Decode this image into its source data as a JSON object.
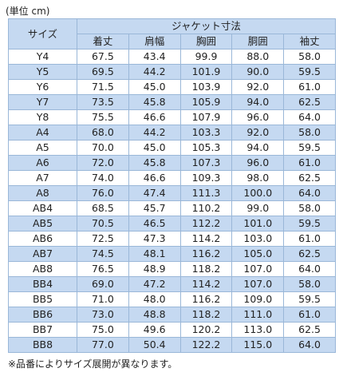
{
  "unit_note": "(単位 cm)",
  "headers": {
    "size": "サイズ",
    "group": "ジャケット寸法",
    "columns": [
      "着丈",
      "肩幅",
      "胸囲",
      "胴囲",
      "袖丈"
    ]
  },
  "rows": [
    {
      "size": "Y4",
      "values": [
        "67.5",
        "43.4",
        "99.9",
        "88.0",
        "58.0"
      ]
    },
    {
      "size": "Y5",
      "values": [
        "69.5",
        "44.2",
        "101.9",
        "90.0",
        "59.5"
      ]
    },
    {
      "size": "Y6",
      "values": [
        "71.5",
        "45.0",
        "103.9",
        "92.0",
        "61.0"
      ]
    },
    {
      "size": "Y7",
      "values": [
        "73.5",
        "45.8",
        "105.9",
        "94.0",
        "62.5"
      ]
    },
    {
      "size": "Y8",
      "values": [
        "75.5",
        "46.6",
        "107.9",
        "96.0",
        "64.0"
      ]
    },
    {
      "size": "A4",
      "values": [
        "68.0",
        "44.2",
        "103.3",
        "92.0",
        "58.0"
      ]
    },
    {
      "size": "A5",
      "values": [
        "70.0",
        "45.0",
        "105.3",
        "94.0",
        "59.5"
      ]
    },
    {
      "size": "A6",
      "values": [
        "72.0",
        "45.8",
        "107.3",
        "96.0",
        "61.0"
      ]
    },
    {
      "size": "A7",
      "values": [
        "74.0",
        "46.6",
        "109.3",
        "98.0",
        "62.5"
      ]
    },
    {
      "size": "A8",
      "values": [
        "76.0",
        "47.4",
        "111.3",
        "100.0",
        "64.0"
      ]
    },
    {
      "size": "AB4",
      "values": [
        "68.5",
        "45.7",
        "110.2",
        "99.0",
        "58.0"
      ]
    },
    {
      "size": "AB5",
      "values": [
        "70.5",
        "46.5",
        "112.2",
        "101.0",
        "59.5"
      ]
    },
    {
      "size": "AB6",
      "values": [
        "72.5",
        "47.3",
        "114.2",
        "103.0",
        "61.0"
      ]
    },
    {
      "size": "AB7",
      "values": [
        "74.5",
        "48.1",
        "116.2",
        "105.0",
        "62.5"
      ]
    },
    {
      "size": "AB8",
      "values": [
        "76.5",
        "48.9",
        "118.2",
        "107.0",
        "64.0"
      ]
    },
    {
      "size": "BB4",
      "values": [
        "69.0",
        "47.2",
        "114.2",
        "107.0",
        "58.0"
      ]
    },
    {
      "size": "BB5",
      "values": [
        "71.0",
        "48.0",
        "116.2",
        "109.0",
        "59.5"
      ]
    },
    {
      "size": "BB6",
      "values": [
        "73.0",
        "48.8",
        "118.2",
        "111.0",
        "61.0"
      ]
    },
    {
      "size": "BB7",
      "values": [
        "75.0",
        "49.6",
        "120.2",
        "113.0",
        "62.5"
      ]
    },
    {
      "size": "BB8",
      "values": [
        "77.0",
        "50.4",
        "122.2",
        "115.0",
        "64.0"
      ]
    }
  ],
  "footnote": "※品番によりサイズ展開が異なります。",
  "colors": {
    "header_bg": "#c5d9f1",
    "band_bg": "#c5d9f1",
    "border": "#9ab7d8"
  }
}
